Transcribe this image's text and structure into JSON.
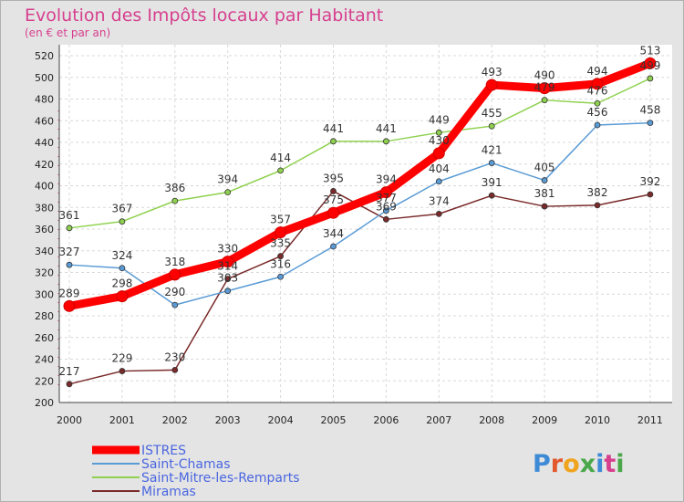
{
  "chart_data": {
    "type": "line",
    "title": "Evolution des Impôts locaux par Habitant",
    "subtitle": "(en € et par an)",
    "categories": [
      "2000",
      "2001",
      "2002",
      "2003",
      "2004",
      "2005",
      "2006",
      "2007",
      "2008",
      "2009",
      "2010",
      "2011"
    ],
    "ylim": [
      200,
      520
    ],
    "yticks": [
      200,
      220,
      240,
      260,
      280,
      300,
      320,
      340,
      360,
      380,
      400,
      420,
      440,
      460,
      480,
      500,
      520
    ],
    "grid": true,
    "legend_position": "bottom-left",
    "series": [
      {
        "name": "ISTRES",
        "color": "#ff0000",
        "values": [
          289,
          298,
          318,
          330,
          357,
          375,
          394,
          430,
          493,
          490,
          494,
          513
        ]
      },
      {
        "name": "Saint-Chamas",
        "color": "#5a9bd5",
        "values": [
          327,
          324,
          290,
          303,
          316,
          344,
          377,
          404,
          421,
          405,
          456,
          458
        ]
      },
      {
        "name": "Saint-Mitre-les-Remparts",
        "color": "#8fd14f",
        "values": [
          361,
          367,
          386,
          394,
          414,
          441,
          441,
          449,
          455,
          479,
          476,
          499
        ]
      },
      {
        "name": "Miramas",
        "color": "#7a2a2a",
        "values": [
          217,
          229,
          230,
          314,
          335,
          395,
          369,
          374,
          391,
          381,
          382,
          392
        ]
      }
    ]
  },
  "brand": {
    "logo_text": "Proxiti"
  }
}
